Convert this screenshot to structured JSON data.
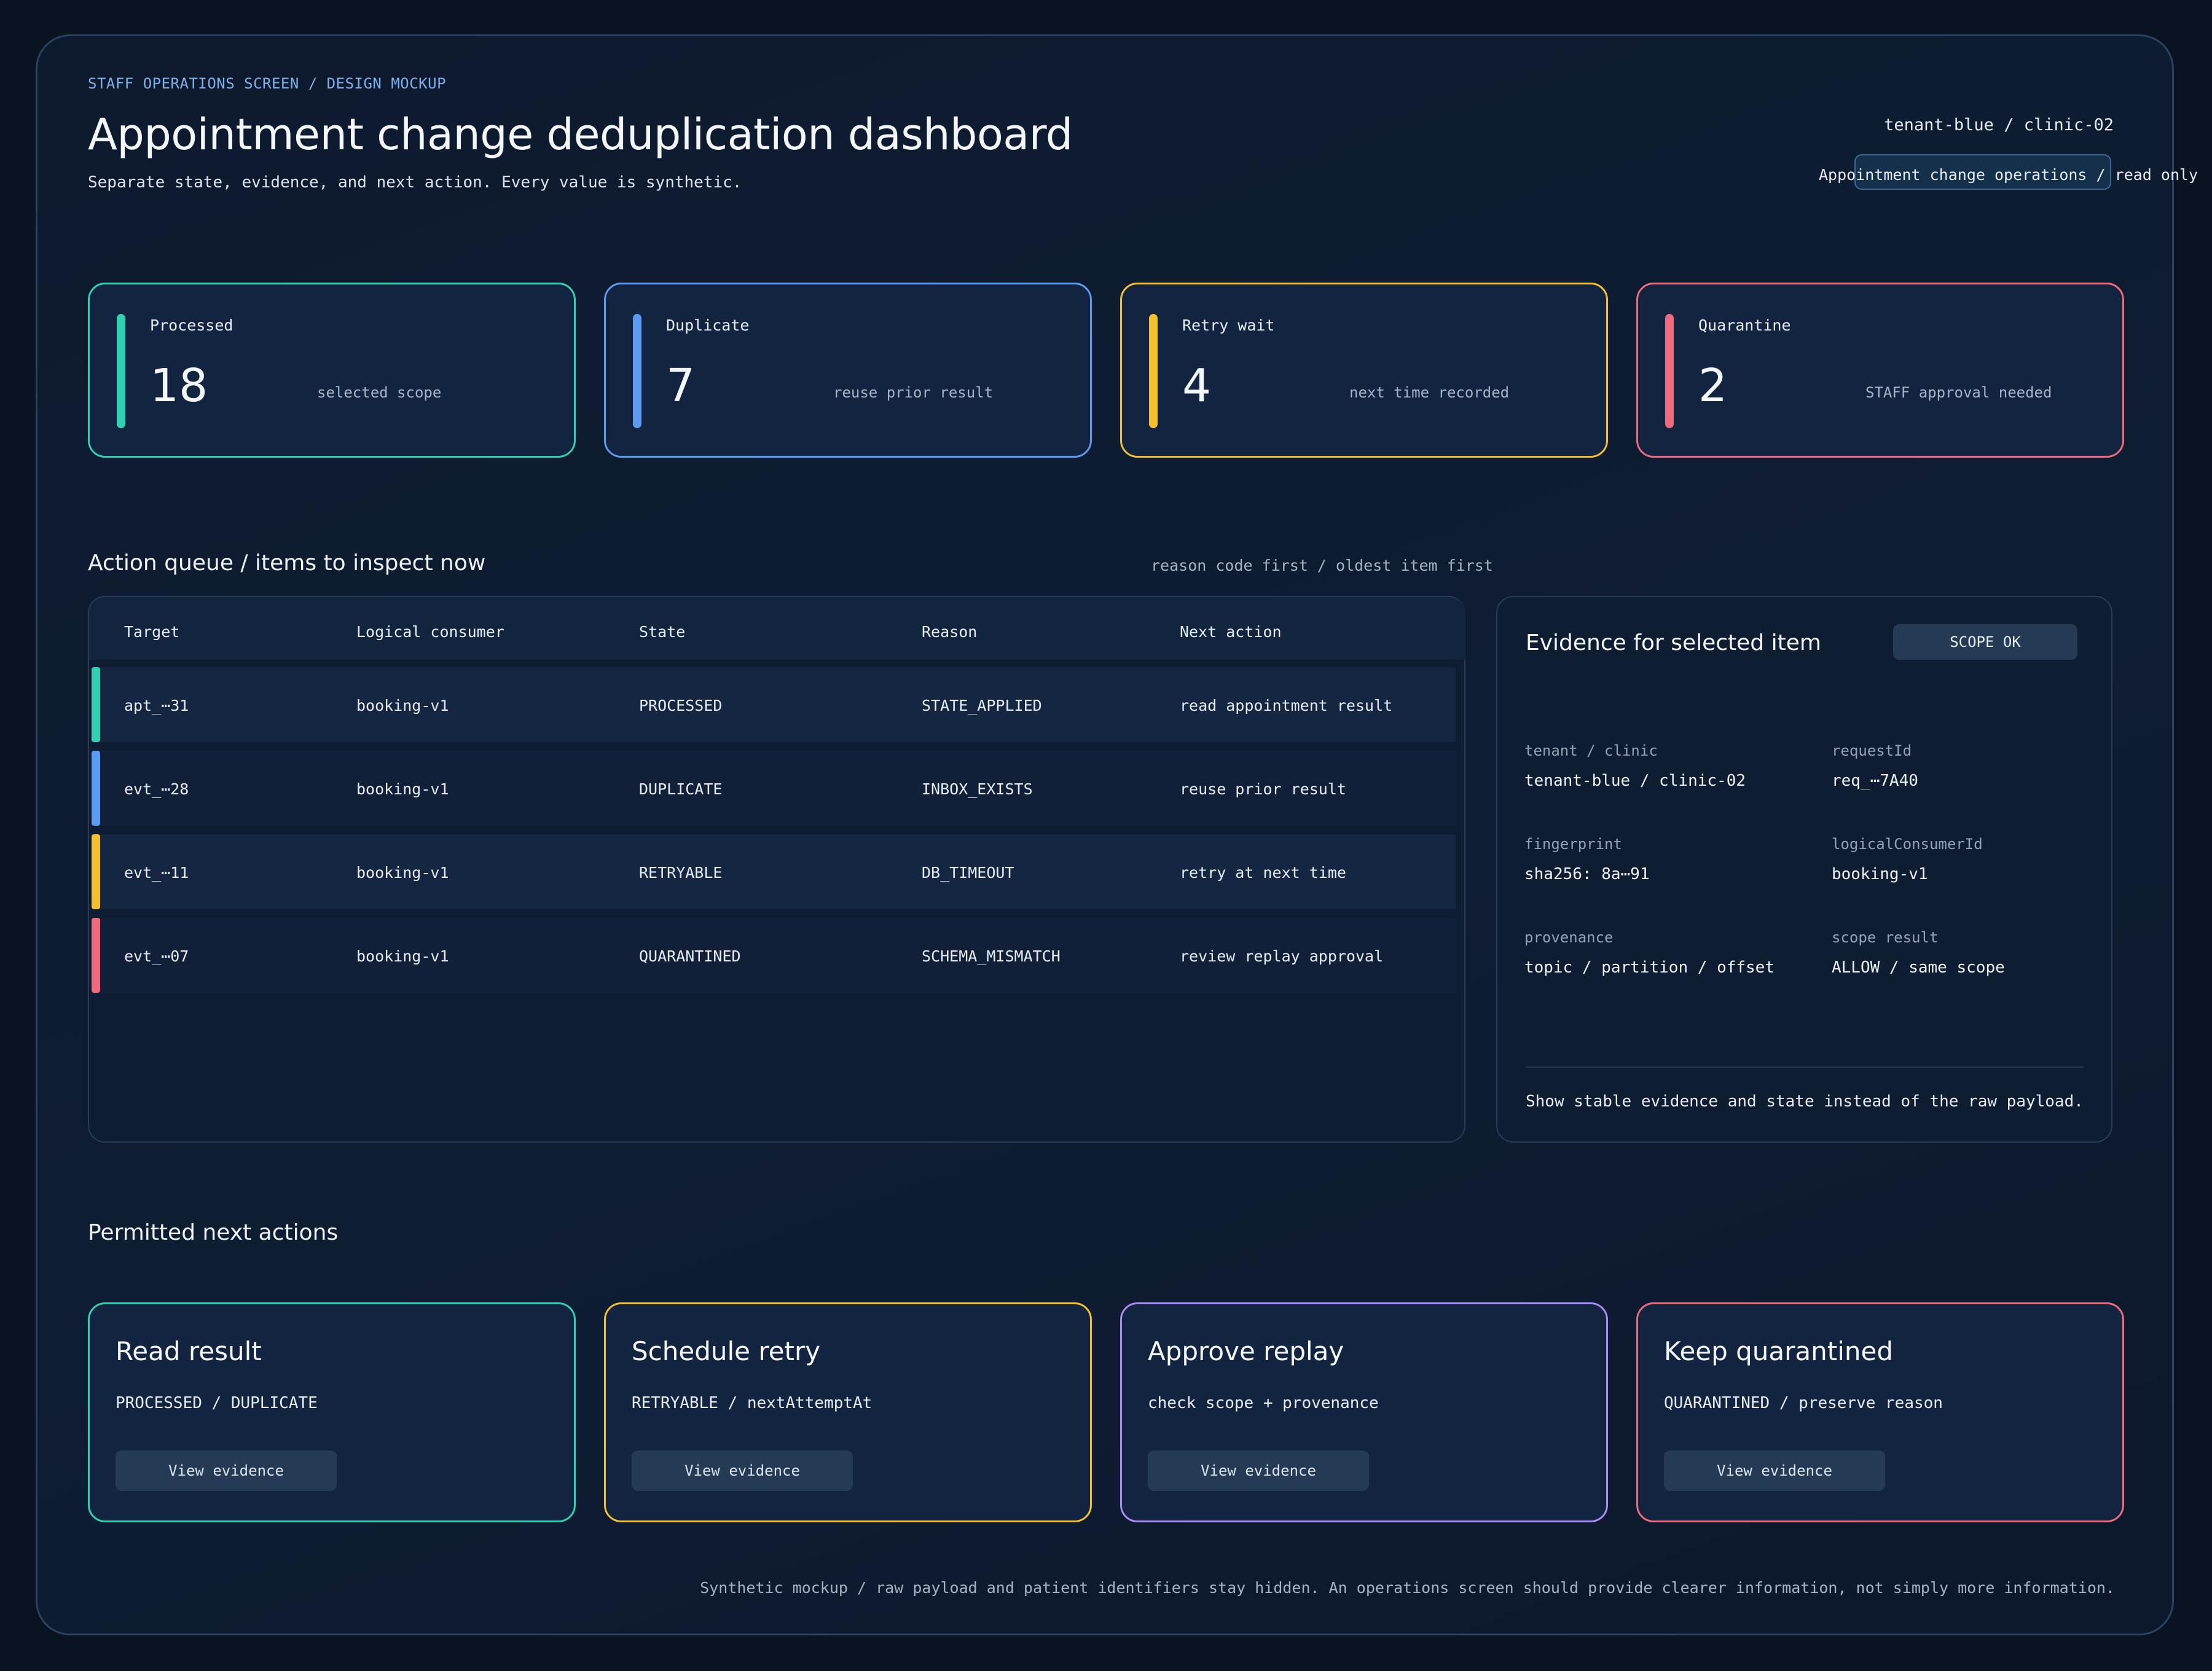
{
  "header": {
    "eyebrow": "STAFF OPERATIONS SCREEN / DESIGN MOCKUP",
    "title": "Appointment change deduplication dashboard",
    "subtitle": "Separate state, evidence, and next action. Every value is synthetic.",
    "tenant": "tenant-blue / clinic-02",
    "mode": "Appointment change operations / read only"
  },
  "kpis": [
    {
      "label": "Processed",
      "value": "18",
      "note": "selected scope",
      "color": "#2fd1b2"
    },
    {
      "label": "Duplicate",
      "value": "7",
      "note": "reuse prior result",
      "color": "#5b9cf2"
    },
    {
      "label": "Retry wait",
      "value": "4",
      "note": "next time recorded",
      "color": "#f4c02e"
    },
    {
      "label": "Quarantine",
      "value": "2",
      "note": "STAFF approval needed",
      "color": "#f06a7d"
    }
  ],
  "queue": {
    "title": "Action queue / items to inspect now",
    "sort_hint": "reason code first / oldest item first",
    "columns": [
      "Target",
      "Logical consumer",
      "State",
      "Reason",
      "Next action"
    ],
    "rows": [
      {
        "target": "apt_⋯31",
        "consumer": "booking-v1",
        "state": "PROCESSED",
        "reason": "STATE_APPLIED",
        "next": "read appointment result",
        "color": "#2fd1b2"
      },
      {
        "target": "evt_⋯28",
        "consumer": "booking-v1",
        "state": "DUPLICATE",
        "reason": "INBOX_EXISTS",
        "next": "reuse prior result",
        "color": "#5b9cf2"
      },
      {
        "target": "evt_⋯11",
        "consumer": "booking-v1",
        "state": "RETRYABLE",
        "reason": "DB_TIMEOUT",
        "next": "retry at next time",
        "color": "#f4c02e"
      },
      {
        "target": "evt_⋯07",
        "consumer": "booking-v1",
        "state": "QUARANTINED",
        "reason": "SCHEMA_MISMATCH",
        "next": "review replay approval",
        "color": "#f06a7d"
      }
    ]
  },
  "evidence": {
    "title": "Evidence for selected item",
    "scope_button": "SCOPE OK",
    "fields": [
      {
        "key": "tenant / clinic",
        "value": "tenant-blue / clinic-02"
      },
      {
        "key": "requestId",
        "value": "req_⋯7A40"
      },
      {
        "key": "fingerprint",
        "value": "sha256: 8a⋯91"
      },
      {
        "key": "logicalConsumerId",
        "value": "booking-v1"
      },
      {
        "key": "provenance",
        "value": "topic / partition / offset"
      },
      {
        "key": "scope result",
        "value": "ALLOW / same scope"
      }
    ],
    "note": "Show stable evidence and state instead of the raw payload."
  },
  "actions": {
    "title": "Permitted next actions",
    "button_label": "View evidence",
    "cards": [
      {
        "title": "Read result",
        "desc": "PROCESSED / DUPLICATE",
        "color": "#2fd1b2"
      },
      {
        "title": "Schedule retry",
        "desc": "RETRYABLE / nextAttemptAt",
        "color": "#f4c02e"
      },
      {
        "title": "Approve replay",
        "desc": "check scope + provenance",
        "color": "#a98cf6"
      },
      {
        "title": "Keep quarantined",
        "desc": "QUARANTINED / preserve reason",
        "color": "#f06a7d"
      }
    ]
  },
  "footer": "Synthetic mockup / raw payload and patient identifiers stay hidden. An operations screen should provide clearer information, not simply more information."
}
